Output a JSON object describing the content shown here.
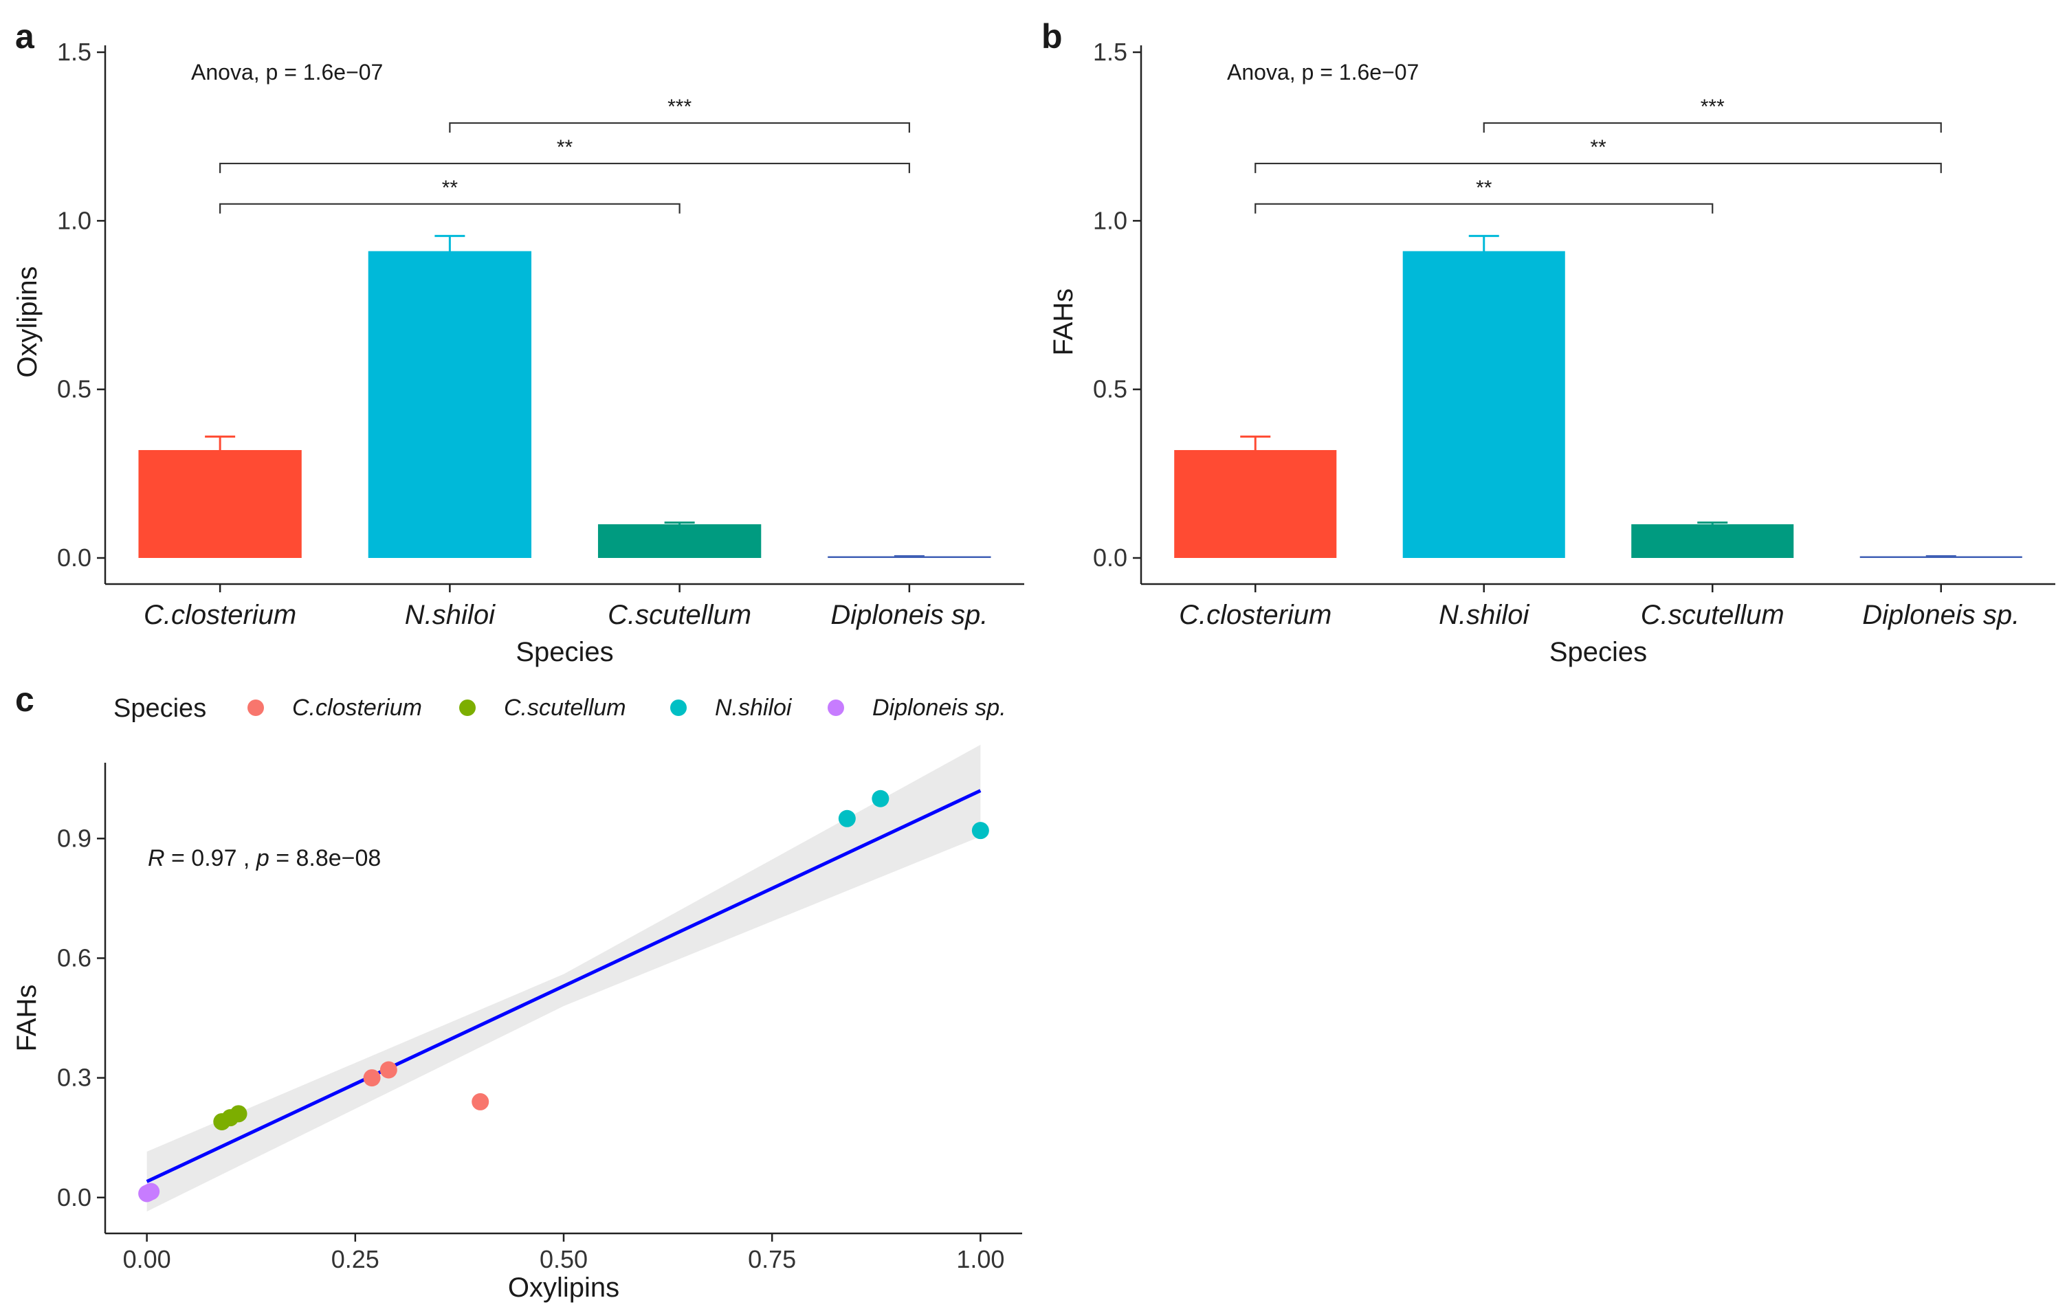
{
  "chart_data": [
    {
      "panel": "a",
      "type": "bar",
      "categories": [
        "C.closterium",
        "N.shiloi",
        "C.scutellum",
        "Diploneis sp."
      ],
      "values": [
        0.32,
        0.91,
        0.1,
        0.003
      ],
      "error_upper": [
        0.36,
        0.955,
        0.105,
        0.005
      ],
      "colors": [
        "#FF4B33",
        "#00B9D9",
        "#009B80",
        "#3F5FB5"
      ],
      "xlabel": "Species",
      "ylabel": "Oxylipins",
      "ylim": [
        0,
        1.5
      ],
      "yticks": [
        "0.0",
        "0.5",
        "1.0",
        "1.5"
      ],
      "yticks_values": [
        0,
        0.5,
        1.0,
        1.5
      ],
      "annotation": "Anova, p = 1.6e−07",
      "comparisons": [
        {
          "from": 1,
          "to": 3,
          "y": 1.29,
          "label": "***"
        },
        {
          "from": 0,
          "to": 3,
          "y": 1.17,
          "label": "**"
        },
        {
          "from": 0,
          "to": 2,
          "y": 1.05,
          "label": "**"
        }
      ]
    },
    {
      "panel": "b",
      "type": "bar",
      "categories": [
        "C.closterium",
        "N.shiloi",
        "C.scutellum",
        "Diploneis sp."
      ],
      "values": [
        0.32,
        0.91,
        0.1,
        0.003
      ],
      "error_upper": [
        0.36,
        0.955,
        0.105,
        0.005
      ],
      "colors": [
        "#FF4B33",
        "#00B9D9",
        "#009B80",
        "#3F5FB5"
      ],
      "xlabel": "Species",
      "ylabel": "FAHs",
      "ylim": [
        0,
        1.5
      ],
      "yticks": [
        "0.0",
        "0.5",
        "1.0",
        "1.5"
      ],
      "yticks_values": [
        0,
        0.5,
        1.0,
        1.5
      ],
      "annotation": "Anova, p = 1.6e−07",
      "comparisons": [
        {
          "from": 1,
          "to": 3,
          "y": 1.29,
          "label": "***"
        },
        {
          "from": 0,
          "to": 3,
          "y": 1.17,
          "label": "**"
        },
        {
          "from": 0,
          "to": 2,
          "y": 1.05,
          "label": "**"
        }
      ]
    },
    {
      "panel": "c",
      "type": "scatter",
      "xlabel": "Oxylipins",
      "ylabel": "FAHs",
      "xlim": [
        -0.05,
        1.05
      ],
      "ylim": [
        -0.09,
        1.09
      ],
      "xticks": [
        "0.00",
        "0.25",
        "0.50",
        "0.75",
        "1.00"
      ],
      "xticks_values": [
        0,
        0.25,
        0.5,
        0.75,
        1.0
      ],
      "yticks": [
        "0.0",
        "0.3",
        "0.6",
        "0.9"
      ],
      "yticks_values": [
        0,
        0.3,
        0.6,
        0.9
      ],
      "legend_title": "Species",
      "legend_position": "top",
      "series": [
        {
          "name": "C.closterium",
          "color": "#F8766D",
          "points": [
            [
              0.27,
              0.3
            ],
            [
              0.29,
              0.32
            ],
            [
              0.4,
              0.24
            ]
          ]
        },
        {
          "name": "C.scutellum",
          "color": "#7CAE00",
          "points": [
            [
              0.09,
              0.19
            ],
            [
              0.1,
              0.2
            ],
            [
              0.11,
              0.21
            ]
          ]
        },
        {
          "name": "N.shiloi",
          "color": "#00BFC4",
          "points": [
            [
              0.84,
              0.95
            ],
            [
              0.88,
              1.0
            ],
            [
              1.0,
              0.92
            ]
          ]
        },
        {
          "name": "Diploneis sp.",
          "color": "#C77CFF",
          "points": [
            [
              0.0,
              0.01
            ],
            [
              0.005,
              0.015
            ],
            [
              0.002,
              0.012
            ]
          ]
        }
      ],
      "fit_line": {
        "x0": 0,
        "y0": 0.04,
        "x1": 1.0,
        "y1": 1.02,
        "color": "#0000FF"
      },
      "confidence_band": [
        [
          0,
          0.115,
          -0.035
        ],
        [
          0.5,
          0.56,
          0.48
        ],
        [
          1.0,
          1.135,
          0.905
        ]
      ],
      "stat_label_r": "R",
      "stat_value_r": " = 0.97 , ",
      "stat_label_p": "p",
      "stat_value_p": " = 8.8e−08"
    }
  ]
}
